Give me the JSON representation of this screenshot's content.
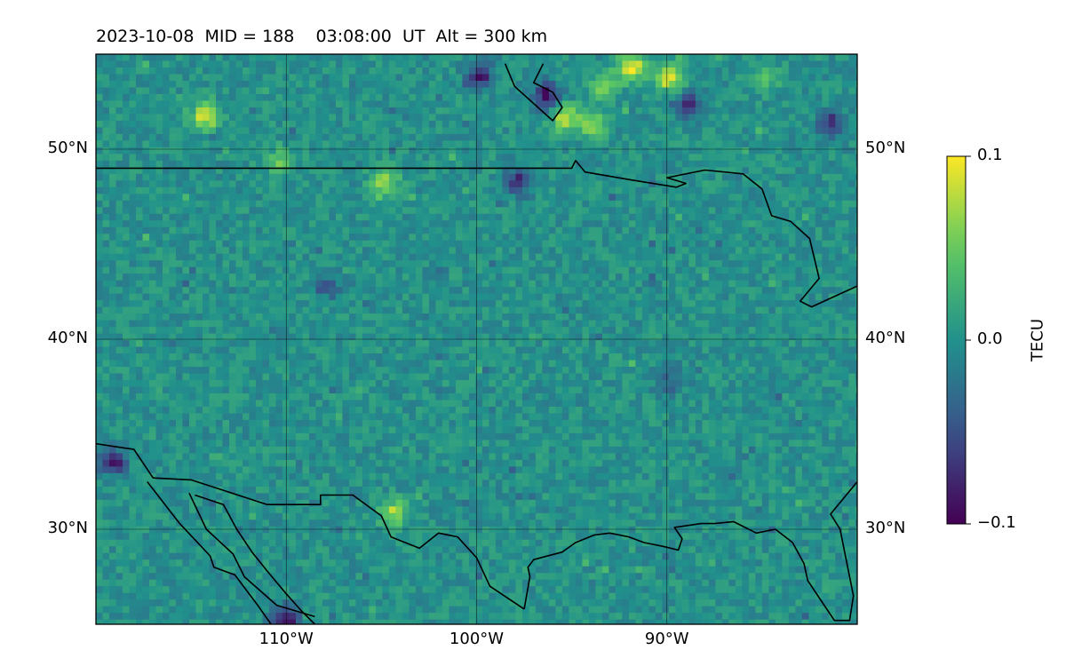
{
  "title": "2023-10-08  MID = 188    03:08:00  UT  Alt = 300 km",
  "map": {
    "lon_range": [
      -120,
      -80
    ],
    "lat_range": [
      25,
      55
    ],
    "lat_ticks": [
      {
        "value": 50,
        "label": "50°N"
      },
      {
        "value": 40,
        "label": "40°N"
      },
      {
        "value": 30,
        "label": "30°N"
      }
    ],
    "lon_ticks": [
      {
        "value": -110,
        "label": "110°W"
      },
      {
        "value": -100,
        "label": "100°W"
      },
      {
        "value": -90,
        "label": "90°W"
      }
    ],
    "grid": true,
    "colormap": "viridis"
  },
  "colorbar": {
    "label": "TECU",
    "vmin": -0.1,
    "vmax": 0.1,
    "ticks": [
      {
        "value": 0.1,
        "label": "0.1"
      },
      {
        "value": 0.0,
        "label": "0.0"
      },
      {
        "value": -0.1,
        "label": "−0.1"
      }
    ]
  },
  "field": {
    "background": 0.0,
    "anomalies": [
      {
        "lon": -92,
        "lat": 54.5,
        "value": 0.1
      },
      {
        "lon": -90,
        "lat": 54,
        "value": 0.09
      },
      {
        "lon": -93.5,
        "lat": 53.5,
        "value": 0.07
      },
      {
        "lon": -85,
        "lat": 54,
        "value": 0.04
      },
      {
        "lon": -114.5,
        "lat": 52,
        "value": 0.09
      },
      {
        "lon": -95.5,
        "lat": 51.8,
        "value": 0.08
      },
      {
        "lon": -94,
        "lat": 51.5,
        "value": 0.07
      },
      {
        "lon": -105,
        "lat": 48.5,
        "value": 0.07
      },
      {
        "lon": -110.5,
        "lat": 49.5,
        "value": 0.05
      },
      {
        "lon": -104.5,
        "lat": 31,
        "value": 0.07
      },
      {
        "lon": -100,
        "lat": 54,
        "value": -0.08
      },
      {
        "lon": -96.5,
        "lat": 53,
        "value": -0.09
      },
      {
        "lon": -89,
        "lat": 52.5,
        "value": -0.07
      },
      {
        "lon": -81.5,
        "lat": 51.5,
        "value": -0.07
      },
      {
        "lon": -98,
        "lat": 48.5,
        "value": -0.07
      },
      {
        "lon": -119.3,
        "lat": 33.8,
        "value": -0.09
      },
      {
        "lon": -110.2,
        "lat": 25.4,
        "value": -0.1
      },
      {
        "lon": -108,
        "lat": 43,
        "value": -0.04
      },
      {
        "lon": -90,
        "lat": 38,
        "value": -0.04
      }
    ]
  },
  "boundaries": [
    [
      [
        -120,
        49
      ],
      [
        -95,
        49
      ],
      [
        -94.8,
        49.4
      ],
      [
        -94.3,
        48.8
      ],
      [
        -92,
        48.4
      ],
      [
        -89.5,
        48
      ],
      [
        -89,
        48.2
      ],
      [
        -90,
        48.5
      ],
      [
        -88,
        48.9
      ],
      [
        -86,
        48.7
      ],
      [
        -85,
        47.9
      ],
      [
        -84.5,
        46.5
      ],
      [
        -83.5,
        46.2
      ],
      [
        -82.5,
        45.3
      ],
      [
        -82,
        43.2
      ],
      [
        -83,
        42
      ],
      [
        -82.4,
        41.7
      ],
      [
        -80,
        42.8
      ]
    ],
    [
      [
        -120,
        34.5
      ],
      [
        -118,
        34.2
      ],
      [
        -117,
        32.7
      ],
      [
        -115,
        32.6
      ],
      [
        -111,
        31.3
      ],
      [
        -108.2,
        31.3
      ],
      [
        -108.2,
        31.8
      ],
      [
        -106.5,
        31.8
      ],
      [
        -105,
        30.7
      ],
      [
        -104.5,
        29.6
      ],
      [
        -103,
        29
      ],
      [
        -102,
        29.8
      ],
      [
        -101,
        29.6
      ],
      [
        -100,
        28.5
      ],
      [
        -99.3,
        27
      ],
      [
        -97.5,
        25.8
      ]
    ],
    [
      [
        -97.5,
        25.8
      ],
      [
        -97.2,
        27.5
      ],
      [
        -97.3,
        28
      ],
      [
        -97,
        28.4
      ],
      [
        -95.5,
        28.8
      ],
      [
        -94.8,
        29.3
      ],
      [
        -93.8,
        29.7
      ],
      [
        -93,
        29.8
      ],
      [
        -92,
        29.6
      ],
      [
        -91.2,
        29.3
      ],
      [
        -90.2,
        29.1
      ],
      [
        -89.4,
        28.9
      ],
      [
        -89.2,
        29.5
      ],
      [
        -89.6,
        30.1
      ],
      [
        -88.2,
        30.3
      ],
      [
        -87.5,
        30.3
      ],
      [
        -86.5,
        30.4
      ],
      [
        -85.3,
        29.8
      ],
      [
        -84.3,
        30
      ],
      [
        -83.4,
        29.3
      ],
      [
        -82.8,
        28.2
      ],
      [
        -82.6,
        27.3
      ],
      [
        -81.8,
        26.1
      ],
      [
        -81.2,
        25.2
      ],
      [
        -80.4,
        25.2
      ],
      [
        -80.2,
        26.5
      ],
      [
        -80.6,
        28.5
      ],
      [
        -80.9,
        30
      ],
      [
        -81.4,
        30.8
      ],
      [
        -80,
        32.5
      ]
    ],
    [
      [
        -117.3,
        32.5
      ],
      [
        -115.6,
        30.3
      ],
      [
        -114,
        28.6
      ],
      [
        -113.8,
        28
      ],
      [
        -112.7,
        27.6
      ],
      [
        -111.5,
        26
      ],
      [
        -110.8,
        25
      ],
      [
        -109.5,
        24.6
      ]
    ],
    [
      [
        -115.1,
        31.9
      ],
      [
        -114.2,
        30
      ],
      [
        -112.8,
        28.7
      ],
      [
        -112.2,
        27.5
      ],
      [
        -110.5,
        26
      ],
      [
        -108.5,
        25.4
      ]
    ],
    [
      [
        -114.8,
        31.8
      ],
      [
        -113.3,
        31.3
      ],
      [
        -112.6,
        30
      ],
      [
        -111.8,
        28.8
      ],
      [
        -111,
        27.8
      ],
      [
        -110,
        26.6
      ],
      [
        -109.2,
        25.7
      ],
      [
        -108.5,
        25
      ]
    ],
    [
      [
        -96.5,
        54.5
      ],
      [
        -97,
        53.5
      ],
      [
        -96,
        53
      ],
      [
        -95.5,
        52.2
      ],
      [
        -96,
        51.5
      ],
      [
        -98,
        53.3
      ],
      [
        -98.5,
        54.5
      ]
    ]
  ]
}
